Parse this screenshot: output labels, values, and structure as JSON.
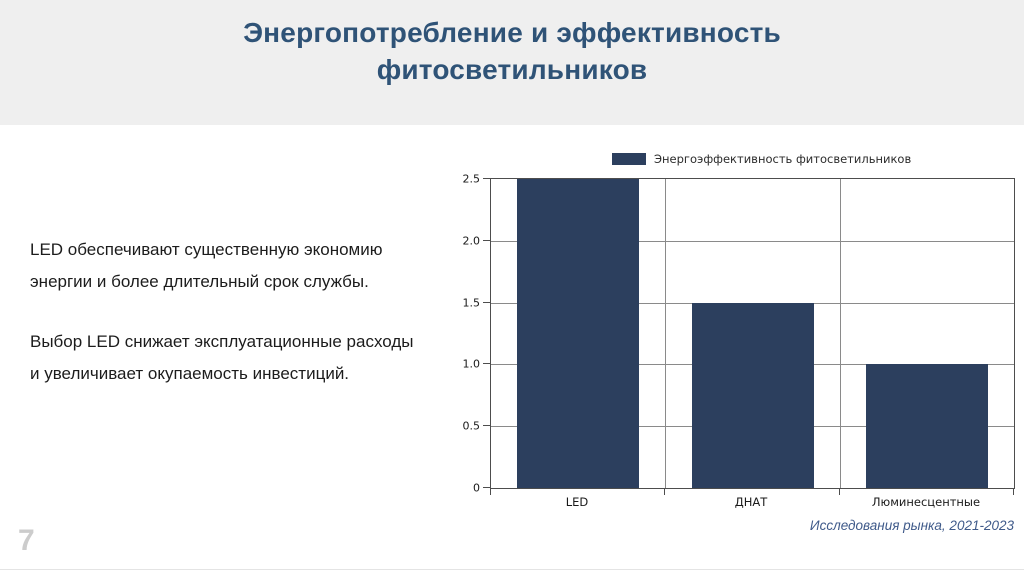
{
  "header": {
    "title_lines": [
      "Энергопотребление и эффективность",
      "фитосветильников"
    ]
  },
  "body_text": {
    "paragraphs": [
      {
        "lines": [
          "LED обеспечивают существенную экономию",
          "энергии и более длительный срок службы."
        ]
      },
      {
        "lines": [
          "Выбор LED снижает эксплуатационные расходы",
          "и увеличивает окупаемость инвестиций."
        ]
      }
    ]
  },
  "chart_data": {
    "type": "bar",
    "title": "",
    "legend": [
      "Энергоэффективность фитосветильников"
    ],
    "legend_position": "top",
    "categories": [
      "LED",
      "ДНАТ",
      "Люминесцентные"
    ],
    "values": [
      2.5,
      1.5,
      1.0
    ],
    "ylim": [
      0,
      2.5
    ],
    "yticks": [
      0,
      0.5,
      1.0,
      1.5,
      2.0,
      2.5
    ],
    "ytick_labels": [
      "0",
      "0.5",
      "1.0",
      "1.5",
      "2.0",
      "2.5"
    ],
    "xlabel": "",
    "ylabel": "",
    "grid": true,
    "bar_color": "#2c3f5e"
  },
  "footer": {
    "page_number": "7",
    "source": "Исследования рынка, 2021-2023"
  },
  "colors": {
    "title_text": "#2f5377",
    "header_background": "#efefef",
    "bar": "#2c3f5e",
    "source_text": "#3f5a8a",
    "page_number": "#cccccc"
  }
}
